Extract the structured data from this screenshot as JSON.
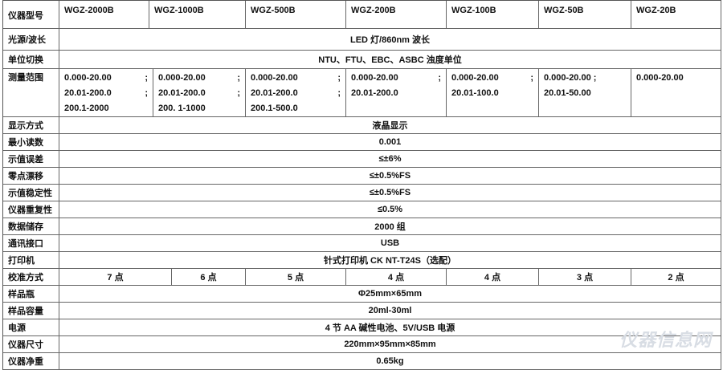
{
  "models_label": "仪器型号",
  "models": [
    "WGZ-2000B",
    "WGZ-1000B",
    "WGZ-500B",
    "WGZ-200B",
    "WGZ-100B",
    "WGZ-50B",
    "WGZ-20B"
  ],
  "light_source": {
    "label": "光源/波长",
    "value": "LED 灯/860nm 波长"
  },
  "units": {
    "label": "单位切换",
    "value": "NTU、FTU、EBC、ASBC 浊度单位"
  },
  "range": {
    "label": "测量范围",
    "cols": [
      [
        [
          "0.000-20.00",
          ";"
        ],
        [
          "20.01-200.0",
          ";"
        ],
        [
          "200.1-2000",
          ""
        ]
      ],
      [
        [
          "0.000-20.00",
          ";"
        ],
        [
          "20.01-200.0",
          ";"
        ],
        [
          "200. 1-1000",
          ""
        ]
      ],
      [
        [
          "0.000-20.00",
          ";"
        ],
        [
          "20.01-200.0",
          ";"
        ],
        [
          "200.1-500.0",
          ""
        ]
      ],
      [
        [
          "0.000-20.00",
          ";"
        ],
        [
          "20.01-200.0",
          ""
        ]
      ],
      [
        [
          "0.000-20.00",
          ";"
        ],
        [
          "20.01-100.0",
          ""
        ]
      ],
      [
        [
          "0.000-20.00 ;",
          ""
        ],
        [
          "20.01-50.00",
          ""
        ]
      ],
      [
        [
          "0.000-20.00",
          ""
        ]
      ]
    ]
  },
  "rows_a": [
    {
      "label": "显示方式",
      "value": "液晶显示"
    },
    {
      "label": "最小读数",
      "value": "0.001"
    },
    {
      "label": "示值误差",
      "value": "≤±6%"
    },
    {
      "label": "零点漂移",
      "value": "≤±0.5%FS"
    },
    {
      "label": "示值稳定性",
      "value": "≤±0.5%FS"
    },
    {
      "label": "仪器重复性",
      "value": "≤0.5%"
    },
    {
      "label": "数据储存",
      "value": "2000 组"
    },
    {
      "label": "通讯接口",
      "value": "USB"
    },
    {
      "label": "打印机",
      "value": "针式打印机 CK NT-T24S（选配）"
    }
  ],
  "calibration": {
    "label": "校准方式",
    "values": [
      "7 点",
      "6 点",
      "5 点",
      "4 点",
      "4 点",
      "3 点",
      "2 点"
    ]
  },
  "rows_b": [
    {
      "label": "样品瓶",
      "value": "Φ25mm×65mm"
    },
    {
      "label": "样品容量",
      "value": "20ml-30ml"
    },
    {
      "label": "电源",
      "value": "4 节 AA 碱性电池、5V/USB 电源"
    },
    {
      "label": "仪器尺寸",
      "value": "220mm×95mm×85mm"
    },
    {
      "label": "仪器净重",
      "value": "0.65kg"
    }
  ],
  "watermark": "仪器信息网"
}
